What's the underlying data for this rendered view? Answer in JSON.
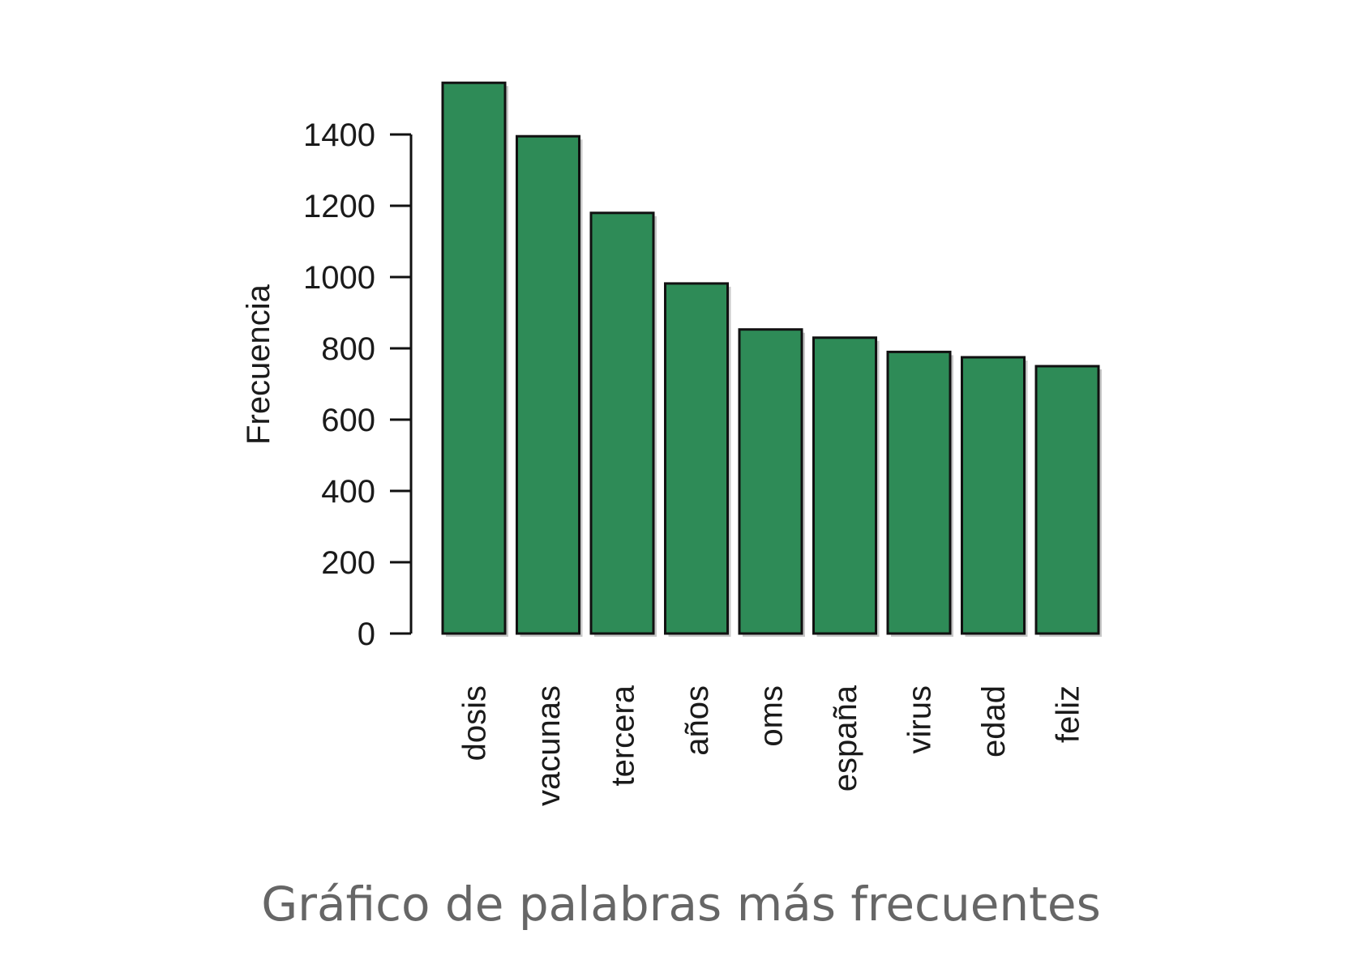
{
  "caption": "Gráfico de palabras más frecuentes",
  "chart_data": {
    "type": "bar",
    "title": "",
    "xlabel": "",
    "ylabel": "Frecuencia",
    "categories": [
      "dosis",
      "vacunas",
      "tercera",
      "años",
      "oms",
      "españa",
      "virus",
      "edad",
      "feliz"
    ],
    "values": [
      1545,
      1395,
      1180,
      982,
      853,
      830,
      790,
      775,
      750
    ],
    "y_ticks": [
      0,
      200,
      400,
      600,
      800,
      1000,
      1200,
      1400
    ],
    "ylim": [
      0,
      1545
    ],
    "grid": false,
    "legend": "none",
    "bar_color": "#2e8b57",
    "bar_outline": "#111111"
  }
}
